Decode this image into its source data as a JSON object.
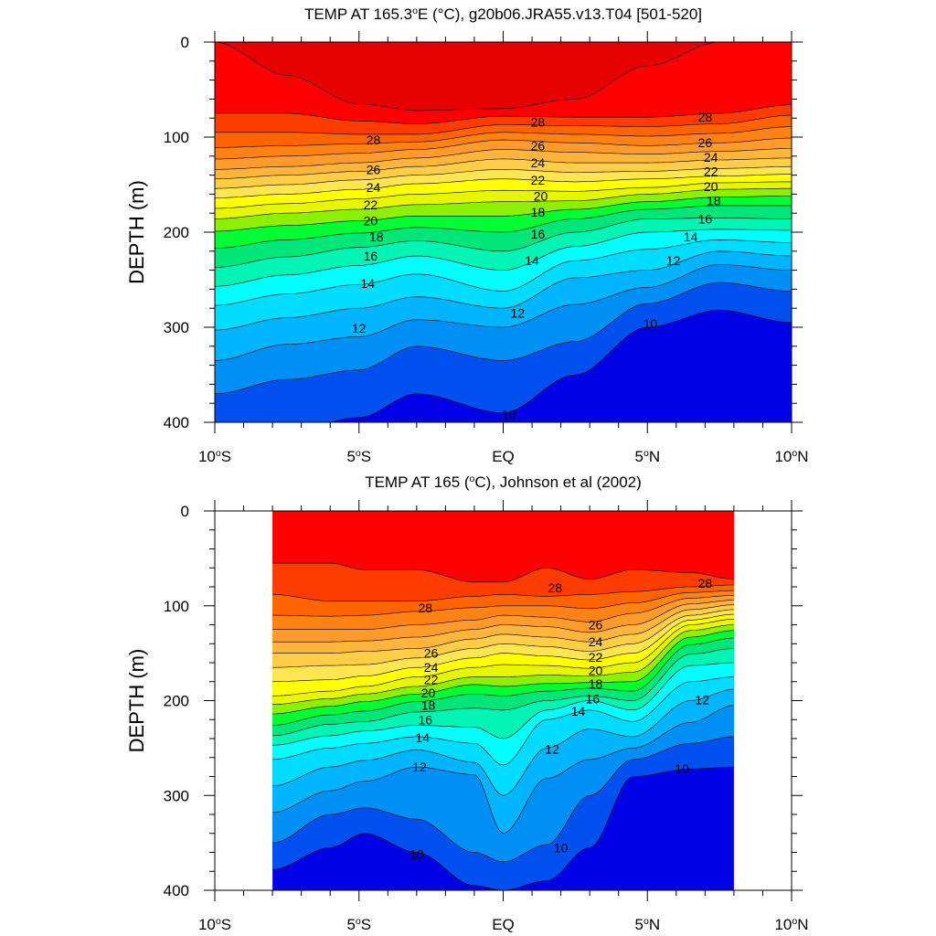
{
  "figure": {
    "background": "#ffffff"
  },
  "chart_data": [
    {
      "type": "contour",
      "title": "TEMP AT 165.3°E (°C), g20b06.JRA55.v13.T04 [501-520]",
      "xlabel": "",
      "ylabel": "DEPTH (m)",
      "xlim": [
        -10,
        10
      ],
      "ylim": [
        400,
        0
      ],
      "data_xrange": [
        -10,
        10
      ],
      "x_ticks": [
        {
          "value": -10,
          "label": "10°S"
        },
        {
          "value": -5,
          "label": "5°S"
        },
        {
          "value": 0,
          "label": "EQ"
        },
        {
          "value": 5,
          "label": "5°N"
        },
        {
          "value": 10,
          "label": "10°N"
        }
      ],
      "y_ticks": [
        {
          "value": 0,
          "label": "0"
        },
        {
          "value": 100,
          "label": "100"
        },
        {
          "value": 200,
          "label": "200"
        },
        {
          "value": 300,
          "label": "300"
        },
        {
          "value": 400,
          "label": "400"
        }
      ],
      "contour_interval": 1,
      "label_levels": [
        10,
        12,
        14,
        16,
        18,
        20,
        22,
        24,
        26,
        28
      ],
      "colors": {
        "9": "#0000e6",
        "10": "#0050f0",
        "11": "#0090f5",
        "12": "#00b4ff",
        "13": "#00dcff",
        "14": "#00ffff",
        "15": "#00f5b4",
        "16": "#00e678",
        "17": "#00ff32",
        "18": "#8cf000",
        "19": "#e6f500",
        "20": "#ffff00",
        "21": "#ffe650",
        "22": "#ffcd46",
        "23": "#ffb43c",
        "24": "#ff9b2d",
        "25": "#ff8214",
        "26": "#ff6400",
        "27": "#ff3c00",
        "28": "#ff0000",
        "29": "#e60000"
      },
      "depth_profiles": [
        {
          "x": -10,
          "isotherm_depths": {
            "10": 410,
            "11": 370,
            "12": 335,
            "13": 303,
            "14": 277,
            "15": 257,
            "16": 237,
            "17": 217,
            "18": 199,
            "19": 186,
            "20": 175,
            "21": 164,
            "22": 154,
            "23": 144,
            "24": 134,
            "25": 123,
            "26": 111,
            "27": 95,
            "28": 75,
            "29": 0
          }
        },
        {
          "x": -7.5,
          "isotherm_depths": {
            "10": 410,
            "11": 355,
            "12": 318,
            "13": 290,
            "14": 265,
            "15": 245,
            "16": 226,
            "17": 208,
            "18": 193,
            "19": 180,
            "20": 170,
            "21": 160,
            "22": 150,
            "23": 140,
            "24": 131,
            "25": 120,
            "26": 109,
            "27": 95,
            "28": 75,
            "29": 35
          }
        },
        {
          "x": -5,
          "isotherm_depths": {
            "10": 395,
            "11": 345,
            "12": 310,
            "13": 280,
            "14": 255,
            "15": 235,
            "16": 216,
            "17": 201,
            "18": 188,
            "19": 176,
            "20": 165,
            "21": 155,
            "22": 145,
            "23": 136,
            "24": 127,
            "25": 117,
            "26": 107,
            "27": 97,
            "28": 83,
            "29": 65
          }
        },
        {
          "x": -3,
          "isotherm_depths": {
            "10": 370,
            "11": 320,
            "12": 292,
            "13": 268,
            "14": 244,
            "15": 225,
            "16": 209,
            "17": 195,
            "18": 183,
            "19": 171,
            "20": 160,
            "21": 149,
            "22": 140,
            "23": 131,
            "24": 122,
            "25": 113,
            "26": 105,
            "27": 97,
            "28": 86,
            "29": 72
          }
        },
        {
          "x": 0,
          "isotherm_depths": {
            "10": 390,
            "11": 335,
            "12": 300,
            "13": 280,
            "14": 262,
            "15": 240,
            "16": 220,
            "17": 200,
            "18": 183,
            "19": 168,
            "20": 156,
            "21": 144,
            "22": 134,
            "23": 123,
            "24": 113,
            "25": 103,
            "26": 95,
            "27": 87,
            "28": 78,
            "29": 70
          }
        },
        {
          "x": 2.5,
          "isotherm_depths": {
            "10": 350,
            "11": 315,
            "12": 276,
            "13": 248,
            "14": 230,
            "15": 215,
            "16": 200,
            "17": 186,
            "18": 176,
            "19": 167,
            "20": 157,
            "21": 147,
            "22": 137,
            "23": 127,
            "24": 116,
            "25": 106,
            "26": 97,
            "27": 88,
            "28": 79,
            "29": 60
          }
        },
        {
          "x": 5,
          "isotherm_depths": {
            "10": 300,
            "11": 275,
            "12": 258,
            "13": 240,
            "14": 218,
            "15": 200,
            "16": 186,
            "17": 176,
            "18": 168,
            "19": 160,
            "20": 153,
            "21": 144,
            "22": 136,
            "23": 127,
            "24": 118,
            "25": 109,
            "26": 99,
            "27": 89,
            "28": 79,
            "29": 25
          }
        },
        {
          "x": 7.5,
          "isotherm_depths": {
            "9": 345,
            "10": 282,
            "11": 253,
            "12": 234,
            "13": 220,
            "14": 208,
            "15": 197,
            "16": 185,
            "17": 172,
            "18": 163,
            "19": 155,
            "20": 148,
            "21": 141,
            "22": 133,
            "23": 124,
            "24": 115,
            "25": 106,
            "26": 96,
            "27": 86,
            "28": 75,
            "29": 0
          }
        },
        {
          "x": 10,
          "isotherm_depths": {
            "9": 345,
            "10": 295,
            "11": 262,
            "12": 240,
            "13": 225,
            "14": 211,
            "15": 198,
            "16": 186,
            "17": 172,
            "18": 162,
            "19": 154,
            "20": 147,
            "21": 139,
            "22": 131,
            "23": 122,
            "24": 112,
            "25": 101,
            "26": 89,
            "27": 77,
            "28": 66,
            "29": 0
          }
        }
      ],
      "contour_labels": [
        {
          "level": 28,
          "x": -4.5,
          "y": 103,
          "text": "28"
        },
        {
          "level": 26,
          "x": -4.5,
          "y": 134,
          "text": "26"
        },
        {
          "level": 24,
          "x": -4.5,
          "y": 153,
          "text": "24"
        },
        {
          "level": 22,
          "x": -4.6,
          "y": 171,
          "text": "22"
        },
        {
          "level": 20,
          "x": -4.6,
          "y": 188,
          "text": "20"
        },
        {
          "level": 18,
          "x": -4.4,
          "y": 205,
          "text": "18"
        },
        {
          "level": 16,
          "x": -4.6,
          "y": 225,
          "text": "16"
        },
        {
          "level": 14,
          "x": -4.7,
          "y": 254,
          "text": "14"
        },
        {
          "level": 12,
          "x": -5,
          "y": 301,
          "text": "12"
        },
        {
          "level": 10,
          "x": 0.2,
          "y": 392,
          "text": "10"
        },
        {
          "level": 28,
          "x": 1.2,
          "y": 84,
          "text": "28"
        },
        {
          "level": 26,
          "x": 1.2,
          "y": 109,
          "text": "26"
        },
        {
          "level": 24,
          "x": 1.2,
          "y": 127,
          "text": "24"
        },
        {
          "level": 22,
          "x": 1.2,
          "y": 145,
          "text": "22"
        },
        {
          "level": 20,
          "x": 1.3,
          "y": 162,
          "text": "20"
        },
        {
          "level": 18,
          "x": 1.2,
          "y": 179,
          "text": "18"
        },
        {
          "level": 16,
          "x": 1.2,
          "y": 202,
          "text": "16"
        },
        {
          "level": 14,
          "x": 1.0,
          "y": 230,
          "text": "14"
        },
        {
          "level": 12,
          "x": 0.5,
          "y": 285,
          "text": "12"
        },
        {
          "level": 10,
          "x": 5.1,
          "y": 296,
          "text": "10"
        },
        {
          "level": 28,
          "x": 7.0,
          "y": 79,
          "text": "28"
        },
        {
          "level": 26,
          "x": 7.0,
          "y": 106,
          "text": "26"
        },
        {
          "level": 24,
          "x": 7.2,
          "y": 121,
          "text": "24"
        },
        {
          "level": 22,
          "x": 7.2,
          "y": 136,
          "text": "22"
        },
        {
          "level": 20,
          "x": 7.2,
          "y": 152,
          "text": "20"
        },
        {
          "level": 18,
          "x": 7.3,
          "y": 167,
          "text": "18"
        },
        {
          "level": 16,
          "x": 7.0,
          "y": 186,
          "text": "16"
        },
        {
          "level": 14,
          "x": 6.5,
          "y": 205,
          "text": "14"
        },
        {
          "level": 12,
          "x": 5.9,
          "y": 230,
          "text": "12"
        }
      ]
    },
    {
      "type": "contour",
      "title": "TEMP AT 165 (°C), Johnson et al (2002)",
      "xlabel": "",
      "ylabel": "DEPTH (m)",
      "xlim": [
        -10,
        10
      ],
      "ylim": [
        400,
        0
      ],
      "data_xrange": [
        -8,
        8
      ],
      "x_ticks": [
        {
          "value": -10,
          "label": "10°S"
        },
        {
          "value": -5,
          "label": "5°S"
        },
        {
          "value": 0,
          "label": "EQ"
        },
        {
          "value": 5,
          "label": "5°N"
        },
        {
          "value": 10,
          "label": "10°N"
        }
      ],
      "y_ticks": [
        {
          "value": 0,
          "label": "0"
        },
        {
          "value": 100,
          "label": "100"
        },
        {
          "value": 200,
          "label": "200"
        },
        {
          "value": 300,
          "label": "300"
        },
        {
          "value": 400,
          "label": "400"
        }
      ],
      "contour_interval": 1,
      "label_levels": [
        10,
        12,
        14,
        16,
        18,
        20,
        22,
        24,
        26,
        28
      ],
      "colors": {
        "9": "#0000e6",
        "10": "#0050f0",
        "11": "#0090f5",
        "12": "#00b4ff",
        "13": "#00dcff",
        "14": "#00ffff",
        "15": "#00f5b4",
        "16": "#00e678",
        "17": "#00ff32",
        "18": "#8cf000",
        "19": "#e6f500",
        "20": "#ffff00",
        "21": "#ffe650",
        "22": "#ffcd46",
        "23": "#ffb43c",
        "24": "#ff9b2d",
        "25": "#ff8214",
        "26": "#ff6400",
        "27": "#ff3c00",
        "28": "#ff0000",
        "29": "#e60000"
      },
      "depth_profiles": [
        {
          "x": -8,
          "isotherm_depths": {
            "10": 378,
            "11": 350,
            "12": 318,
            "13": 290,
            "14": 262,
            "15": 247,
            "16": 237,
            "17": 226,
            "18": 214,
            "19": 204,
            "20": 195,
            "21": 180,
            "22": 165,
            "23": 150,
            "24": 138,
            "25": 125,
            "26": 110,
            "27": 88,
            "28": 55
          }
        },
        {
          "x": -6,
          "isotherm_depths": {
            "10": 355,
            "11": 320,
            "12": 295,
            "13": 270,
            "14": 250,
            "15": 237,
            "16": 225,
            "17": 215,
            "18": 206,
            "19": 198,
            "20": 190,
            "21": 178,
            "22": 163,
            "23": 150,
            "24": 138,
            "25": 125,
            "26": 111,
            "27": 95,
            "28": 55
          }
        },
        {
          "x": -4.8,
          "isotherm_depths": {
            "10": 340,
            "11": 313,
            "12": 285,
            "13": 263,
            "14": 245,
            "15": 232,
            "16": 222,
            "17": 211,
            "18": 201,
            "19": 193,
            "20": 185,
            "21": 174,
            "22": 162,
            "23": 148,
            "24": 137,
            "25": 125,
            "26": 110,
            "27": 95,
            "28": 62
          }
        },
        {
          "x": -3,
          "isotherm_depths": {
            "10": 360,
            "11": 325,
            "12": 270,
            "13": 252,
            "14": 238,
            "15": 226,
            "16": 212,
            "17": 201,
            "18": 193,
            "19": 185,
            "20": 175,
            "21": 165,
            "22": 155,
            "23": 145,
            "24": 133,
            "25": 120,
            "26": 106,
            "27": 95,
            "28": 62
          }
        },
        {
          "x": -1,
          "isotherm_depths": {
            "10": 395,
            "11": 360,
            "12": 278,
            "13": 265,
            "14": 245,
            "15": 228,
            "16": 208,
            "17": 193,
            "18": 183,
            "19": 175,
            "20": 165,
            "21": 155,
            "22": 145,
            "23": 135,
            "24": 125,
            "25": 115,
            "26": 102,
            "27": 90,
            "28": 75
          }
        },
        {
          "x": 0,
          "isotherm_depths": {
            "10": 400,
            "11": 370,
            "12": 340,
            "13": 300,
            "14": 268,
            "15": 240,
            "16": 210,
            "17": 195,
            "18": 185,
            "19": 175,
            "20": 162,
            "21": 150,
            "22": 140,
            "23": 130,
            "24": 120,
            "25": 110,
            "26": 100,
            "27": 88,
            "28": 75
          }
        },
        {
          "x": 1.5,
          "isotherm_depths": {
            "10": 390,
            "11": 352,
            "12": 282,
            "13": 250,
            "14": 220,
            "15": 210,
            "16": 200,
            "17": 190,
            "18": 182,
            "19": 173,
            "20": 163,
            "21": 153,
            "22": 143,
            "23": 133,
            "24": 122,
            "25": 112,
            "26": 100,
            "27": 90,
            "28": 60
          }
        },
        {
          "x": 3,
          "isotherm_depths": {
            "10": 355,
            "11": 300,
            "12": 262,
            "13": 230,
            "14": 210,
            "15": 200,
            "16": 195,
            "17": 187,
            "18": 181,
            "19": 174,
            "20": 166,
            "21": 157,
            "22": 148,
            "23": 138,
            "24": 128,
            "25": 117,
            "26": 103,
            "27": 88,
            "28": 72
          }
        },
        {
          "x": 4.5,
          "isotherm_depths": {
            "9": 385,
            "10": 280,
            "11": 262,
            "12": 250,
            "13": 238,
            "14": 222,
            "15": 210,
            "16": 200,
            "17": 190,
            "18": 180,
            "19": 170,
            "20": 160,
            "21": 150,
            "22": 140,
            "23": 130,
            "24": 120,
            "25": 108,
            "26": 97,
            "27": 85,
            "28": 62
          }
        },
        {
          "x": 6.5,
          "isotherm_depths": {
            "9": 365,
            "10": 272,
            "11": 245,
            "12": 223,
            "13": 200,
            "14": 180,
            "15": 163,
            "16": 151,
            "17": 141,
            "18": 133,
            "19": 126,
            "20": 120,
            "21": 115,
            "22": 110,
            "23": 104,
            "24": 98,
            "25": 92,
            "26": 86,
            "27": 80,
            "28": 65
          }
        },
        {
          "x": 8,
          "isotherm_depths": {
            "9": 372,
            "10": 270,
            "11": 238,
            "12": 205,
            "13": 188,
            "14": 175,
            "15": 160,
            "16": 145,
            "17": 134,
            "18": 126,
            "19": 120,
            "20": 114,
            "21": 109,
            "22": 104,
            "23": 99,
            "24": 94,
            "25": 89,
            "26": 84,
            "27": 78,
            "28": 72
          }
        }
      ],
      "contour_labels": [
        {
          "level": 28,
          "x": -2.7,
          "y": 102,
          "text": "28"
        },
        {
          "level": 26,
          "x": -2.5,
          "y": 150,
          "text": "26"
        },
        {
          "level": 24,
          "x": -2.5,
          "y": 165,
          "text": "24"
        },
        {
          "level": 22,
          "x": -2.5,
          "y": 178,
          "text": "22"
        },
        {
          "level": 20,
          "x": -2.6,
          "y": 192,
          "text": "20"
        },
        {
          "level": 18,
          "x": -2.6,
          "y": 205,
          "text": "18"
        },
        {
          "level": 16,
          "x": -2.7,
          "y": 220,
          "text": "16"
        },
        {
          "level": 14,
          "x": -2.8,
          "y": 239,
          "text": "14"
        },
        {
          "level": 12,
          "x": -2.9,
          "y": 270,
          "text": "12"
        },
        {
          "level": 10,
          "x": -3,
          "y": 362,
          "text": "10"
        },
        {
          "level": 28,
          "x": 1.8,
          "y": 81,
          "text": "28"
        },
        {
          "level": 26,
          "x": 3.2,
          "y": 120,
          "text": "26"
        },
        {
          "level": 24,
          "x": 3.2,
          "y": 138,
          "text": "24"
        },
        {
          "level": 22,
          "x": 3.2,
          "y": 154,
          "text": "22"
        },
        {
          "level": 20,
          "x": 3.2,
          "y": 168,
          "text": "20"
        },
        {
          "level": 18,
          "x": 3.2,
          "y": 182,
          "text": "18"
        },
        {
          "level": 16,
          "x": 3.1,
          "y": 198,
          "text": "16"
        },
        {
          "level": 14,
          "x": 2.6,
          "y": 211,
          "text": "14"
        },
        {
          "level": 12,
          "x": 1.7,
          "y": 251,
          "text": "12"
        },
        {
          "level": 10,
          "x": 2.0,
          "y": 355,
          "text": "10"
        },
        {
          "level": 12,
          "x": 6.9,
          "y": 199,
          "text": "12"
        },
        {
          "level": 10,
          "x": 6.2,
          "y": 272,
          "text": "10"
        },
        {
          "level": 28,
          "x": 7.0,
          "y": 76,
          "text": "28"
        }
      ]
    }
  ]
}
